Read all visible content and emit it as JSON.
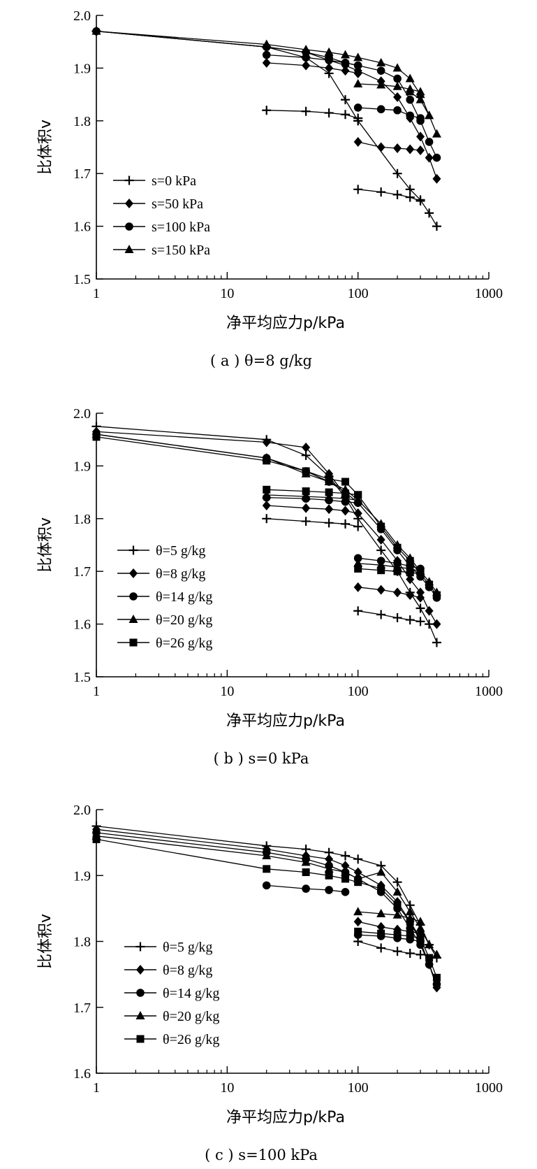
{
  "chart_data": [
    {
      "type": "line",
      "caption": "( a ) θ=8 g/kg",
      "xlabel": "净平均应力p/kPa",
      "ylabel": "比体积v",
      "xscale": "log",
      "xlim": [
        1,
        1000
      ],
      "ylim": [
        1.5,
        2.0
      ],
      "xticks": [
        "1",
        "10",
        "100",
        "1000"
      ],
      "yticks": [
        "1.5",
        "1.6",
        "1.7",
        "1.8",
        "1.9",
        "2.0"
      ],
      "legend_position": "bottom-left",
      "series": [
        {
          "name": "s=0 kPa",
          "marker": "plus",
          "segments": [
            {
              "x": [
                1,
                20,
                40,
                60,
                80,
                100
              ],
              "y": [
                1.97,
                1.94,
                1.92,
                1.89,
                1.84,
                1.8
              ]
            },
            {
              "x": [
                20,
                40,
                60,
                80,
                100
              ],
              "y": [
                1.82,
                1.818,
                1.815,
                1.812,
                1.805
              ]
            },
            {
              "x": [
                100,
                200,
                250,
                300,
                350,
                400
              ],
              "y": [
                1.8,
                1.7,
                1.67,
                1.65,
                1.625,
                1.6
              ]
            },
            {
              "x": [
                100,
                150,
                200,
                250,
                300
              ],
              "y": [
                1.67,
                1.665,
                1.66,
                1.655,
                1.648
              ]
            }
          ]
        },
        {
          "name": "s=50 kPa",
          "marker": "diamond",
          "segments": [
            {
              "x": [
                1,
                20,
                40,
                60,
                80,
                100,
                150,
                200,
                250,
                300,
                350,
                400
              ],
              "y": [
                1.97,
                1.94,
                1.93,
                1.915,
                1.905,
                1.895,
                1.875,
                1.845,
                1.805,
                1.77,
                1.73,
                1.69
              ]
            },
            {
              "x": [
                20,
                40,
                60,
                80,
                100
              ],
              "y": [
                1.91,
                1.905,
                1.9,
                1.895,
                1.89
              ]
            },
            {
              "x": [
                100,
                150,
                200,
                250,
                300
              ],
              "y": [
                1.76,
                1.75,
                1.748,
                1.746,
                1.744
              ]
            }
          ]
        },
        {
          "name": "s=100 kPa",
          "marker": "circle",
          "segments": [
            {
              "x": [
                1,
                20,
                40,
                60,
                80,
                100,
                150,
                200,
                250,
                300,
                350,
                400
              ],
              "y": [
                1.97,
                1.94,
                1.93,
                1.92,
                1.91,
                1.905,
                1.895,
                1.88,
                1.84,
                1.8,
                1.76,
                1.73
              ]
            },
            {
              "x": [
                20,
                40,
                60,
                80,
                100
              ],
              "y": [
                1.925,
                1.92,
                1.915,
                1.91,
                1.905
              ]
            },
            {
              "x": [
                100,
                150,
                200,
                250,
                300
              ],
              "y": [
                1.825,
                1.822,
                1.82,
                1.81,
                1.805
              ]
            }
          ]
        },
        {
          "name": "s=150 kPa",
          "marker": "triangle",
          "segments": [
            {
              "x": [
                1,
                20,
                40,
                60,
                80,
                100,
                150,
                200,
                250,
                300,
                350,
                400
              ],
              "y": [
                1.97,
                1.945,
                1.935,
                1.93,
                1.925,
                1.92,
                1.91,
                1.9,
                1.88,
                1.85,
                1.81,
                1.775
              ]
            },
            {
              "x": [
                100,
                150,
                200,
                250,
                300
              ],
              "y": [
                1.87,
                1.868,
                1.865,
                1.86,
                1.855
              ]
            },
            {
              "x": [
                250,
                300,
                350
              ],
              "y": [
                1.855,
                1.84,
                1.81
              ]
            }
          ]
        }
      ]
    },
    {
      "type": "line",
      "caption": "( b ) s=0 kPa",
      "xlabel": "净平均应力p/kPa",
      "ylabel": "比体积v",
      "xscale": "log",
      "xlim": [
        1,
        1000
      ],
      "ylim": [
        1.5,
        2.0
      ],
      "xticks": [
        "1",
        "10",
        "100",
        "1000"
      ],
      "yticks": [
        "1.5",
        "1.6",
        "1.7",
        "1.8",
        "1.9",
        "2.0"
      ],
      "legend_position": "bottom-left",
      "series": [
        {
          "name": "θ=5 g/kg",
          "marker": "plus",
          "segments": [
            {
              "x": [
                1,
                20,
                40,
                60,
                80,
                100,
                150,
                200,
                250,
                300,
                350,
                400
              ],
              "y": [
                1.975,
                1.95,
                1.92,
                1.88,
                1.84,
                1.8,
                1.74,
                1.7,
                1.66,
                1.63,
                1.6,
                1.565
              ]
            },
            {
              "x": [
                20,
                40,
                60,
                80,
                100
              ],
              "y": [
                1.8,
                1.795,
                1.792,
                1.79,
                1.785
              ]
            },
            {
              "x": [
                100,
                150,
                200,
                250,
                300
              ],
              "y": [
                1.625,
                1.618,
                1.612,
                1.608,
                1.605
              ]
            }
          ]
        },
        {
          "name": "θ=8 g/kg",
          "marker": "diamond",
          "segments": [
            {
              "x": [
                1,
                20,
                40,
                60,
                80,
                100,
                150,
                200,
                250,
                300,
                350,
                400
              ],
              "y": [
                1.965,
                1.945,
                1.935,
                1.885,
                1.845,
                1.81,
                1.76,
                1.72,
                1.685,
                1.66,
                1.625,
                1.6
              ]
            },
            {
              "x": [
                20,
                40,
                60,
                80,
                100
              ],
              "y": [
                1.825,
                1.82,
                1.818,
                1.815,
                1.81
              ]
            },
            {
              "x": [
                100,
                150,
                200,
                250,
                300
              ],
              "y": [
                1.67,
                1.665,
                1.66,
                1.655,
                1.65
              ]
            }
          ]
        },
        {
          "name": "θ=14 g/kg",
          "marker": "circle",
          "segments": [
            {
              "x": [
                1,
                20,
                40,
                60,
                80,
                100,
                150,
                200,
                250,
                300,
                350,
                400
              ],
              "y": [
                1.96,
                1.915,
                1.89,
                1.87,
                1.85,
                1.83,
                1.78,
                1.74,
                1.71,
                1.69,
                1.67,
                1.65
              ]
            },
            {
              "x": [
                20,
                40,
                60,
                80,
                100
              ],
              "y": [
                1.84,
                1.838,
                1.835,
                1.832,
                1.83
              ]
            },
            {
              "x": [
                100,
                150,
                200,
                250,
                300
              ],
              "y": [
                1.725,
                1.72,
                1.715,
                1.71,
                1.705
              ]
            }
          ]
        },
        {
          "name": "θ=20 g/kg",
          "marker": "triangle",
          "segments": [
            {
              "x": [
                1,
                20,
                40,
                60,
                80,
                100,
                150,
                200,
                250,
                300,
                350,
                400
              ],
              "y": [
                1.96,
                1.915,
                1.885,
                1.87,
                1.855,
                1.835,
                1.79,
                1.75,
                1.725,
                1.7,
                1.68,
                1.66
              ]
            },
            {
              "x": [
                20,
                40,
                60,
                80,
                100
              ],
              "y": [
                1.845,
                1.842,
                1.84,
                1.838,
                1.835
              ]
            },
            {
              "x": [
                100,
                150,
                200,
                250,
                300
              ],
              "y": [
                1.715,
                1.712,
                1.708,
                1.705,
                1.7
              ]
            }
          ]
        },
        {
          "name": "θ=26 g/kg",
          "marker": "square",
          "segments": [
            {
              "x": [
                1,
                20,
                40,
                60,
                80,
                100,
                150,
                200,
                250,
                300,
                350,
                400
              ],
              "y": [
                1.955,
                1.91,
                1.89,
                1.875,
                1.87,
                1.845,
                1.785,
                1.745,
                1.72,
                1.695,
                1.675,
                1.655
              ]
            },
            {
              "x": [
                20,
                40,
                60,
                80,
                100
              ],
              "y": [
                1.855,
                1.852,
                1.85,
                1.848,
                1.845
              ]
            },
            {
              "x": [
                100,
                150,
                200,
                250,
                300
              ],
              "y": [
                1.705,
                1.702,
                1.7,
                1.698,
                1.695
              ]
            }
          ]
        }
      ]
    },
    {
      "type": "line",
      "caption": "( c ) s=100 kPa",
      "xlabel": "净平均应力p/kPa",
      "ylabel": "比体积v",
      "xscale": "log",
      "xlim": [
        1,
        1000
      ],
      "ylim": [
        1.6,
        2.0
      ],
      "xticks": [
        "1",
        "10",
        "100",
        "1000"
      ],
      "yticks": [
        "1.6",
        "1.7",
        "1.8",
        "1.9",
        "2.0"
      ],
      "legend_position": "bottom-left",
      "series": [
        {
          "name": "θ=5 g/kg",
          "marker": "plus",
          "segments": [
            {
              "x": [
                1,
                20,
                40,
                60,
                80,
                100,
                150,
                200,
                250,
                300,
                350,
                400
              ],
              "y": [
                1.975,
                1.945,
                1.94,
                1.935,
                1.93,
                1.925,
                1.915,
                1.89,
                1.855,
                1.825,
                1.795,
                1.775
              ]
            },
            {
              "x": [
                100,
                150,
                200,
                250,
                300
              ],
              "y": [
                1.8,
                1.79,
                1.785,
                1.782,
                1.78
              ]
            }
          ]
        },
        {
          "name": "θ=8 g/kg",
          "marker": "diamond",
          "segments": [
            {
              "x": [
                1,
                20,
                40,
                60,
                80,
                100,
                150,
                200,
                250,
                300,
                350,
                400
              ],
              "y": [
                1.97,
                1.94,
                1.93,
                1.925,
                1.915,
                1.905,
                1.885,
                1.86,
                1.83,
                1.8,
                1.765,
                1.73
              ]
            },
            {
              "x": [
                100,
                150,
                200,
                250,
                300
              ],
              "y": [
                1.83,
                1.822,
                1.818,
                1.815,
                1.812
              ]
            }
          ]
        },
        {
          "name": "θ=14 g/kg",
          "marker": "circle",
          "segments": [
            {
              "x": [
                1,
                20,
                40,
                60,
                80,
                100,
                150,
                200,
                250,
                300,
                350,
                400
              ],
              "y": [
                1.965,
                1.935,
                1.925,
                1.915,
                1.905,
                1.895,
                1.875,
                1.85,
                1.82,
                1.795,
                1.765,
                1.735
              ]
            },
            {
              "x": [
                20,
                40,
                60,
                80
              ],
              "y": [
                1.885,
                1.88,
                1.878,
                1.875
              ]
            },
            {
              "x": [
                100,
                150,
                200,
                250,
                300
              ],
              "y": [
                1.81,
                1.808,
                1.805,
                1.803,
                1.8
              ]
            }
          ]
        },
        {
          "name": "θ=20 g/kg",
          "marker": "triangle",
          "segments": [
            {
              "x": [
                1,
                20,
                40,
                60,
                80,
                100,
                150,
                200,
                250,
                300,
                350,
                400
              ],
              "y": [
                1.96,
                1.93,
                1.92,
                1.91,
                1.905,
                1.895,
                1.905,
                1.875,
                1.845,
                1.82,
                1.795,
                1.78
              ]
            },
            {
              "x": [
                100,
                150,
                200,
                250,
                300
              ],
              "y": [
                1.845,
                1.842,
                1.84,
                1.835,
                1.83
              ]
            }
          ]
        },
        {
          "name": "θ=26 g/kg",
          "marker": "square",
          "segments": [
            {
              "x": [
                1,
                20,
                40,
                60,
                80,
                100,
                150,
                200,
                250,
                300,
                350,
                400
              ],
              "y": [
                1.955,
                1.91,
                1.905,
                1.9,
                1.895,
                1.89,
                1.88,
                1.855,
                1.83,
                1.805,
                1.775,
                1.745
              ]
            },
            {
              "x": [
                100,
                150,
                200,
                250,
                300
              ],
              "y": [
                1.815,
                1.812,
                1.81,
                1.808,
                1.805
              ]
            }
          ]
        }
      ]
    }
  ]
}
